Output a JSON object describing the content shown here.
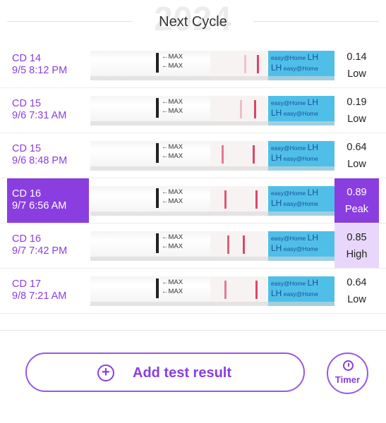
{
  "header": {
    "title": "Next Cycle",
    "watermark_year": "2024"
  },
  "results": [
    {
      "day": "CD 14",
      "datetime": "9/5 8:12 PM",
      "value": "0.14",
      "level": "Low",
      "state": "normal",
      "test_line": 0.14
    },
    {
      "day": "CD 15",
      "datetime": "9/6 7:31 AM",
      "value": "0.19",
      "level": "Low",
      "state": "normal",
      "test_line": 0.19
    },
    {
      "day": "CD 15",
      "datetime": "9/6 8:48 PM",
      "value": "0.64",
      "level": "Low",
      "state": "normal",
      "test_line": 0.64
    },
    {
      "day": "CD 16",
      "datetime": "9/7 6:56 AM",
      "value": "0.89",
      "level": "Peak",
      "state": "highlight",
      "test_line": 0.89
    },
    {
      "day": "CD 16",
      "datetime": "9/7 7:42 PM",
      "value": "0.85",
      "level": "High",
      "state": "high",
      "test_line": 0.85
    },
    {
      "day": "CD 17",
      "datetime": "9/8 7:21 AM",
      "value": "0.64",
      "level": "Low",
      "state": "normal",
      "test_line": 0.64
    }
  ],
  "strip_text": {
    "max_label": "←MAX",
    "brand": "easy@Home",
    "lh": "LH"
  },
  "actions": {
    "add_label": "Add test result",
    "timer_label": "Timer"
  },
  "colors": {
    "accent": "#8a3ee0",
    "high_bg": "#e8d7fb",
    "control_line": "#d9476a"
  }
}
